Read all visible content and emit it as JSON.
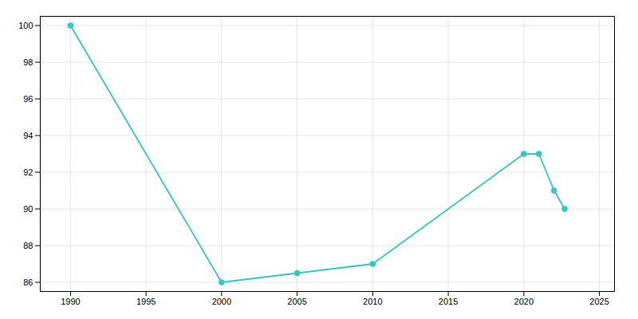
{
  "chart_data": {
    "type": "line",
    "x": [
      1990,
      2000,
      2005,
      2010,
      2020,
      2021,
      2022,
      2022.7
    ],
    "values": [
      100,
      86,
      86.5,
      87,
      93,
      93,
      91,
      90
    ],
    "color": "#2EC8C8",
    "marker": "circle",
    "xlim": [
      1988,
      2026
    ],
    "ylim": [
      85.5,
      100.5
    ],
    "xticks": [
      1990,
      1995,
      2000,
      2005,
      2010,
      2015,
      2020,
      2025
    ],
    "yticks": [
      86,
      88,
      90,
      92,
      94,
      96,
      98,
      100
    ],
    "grid": true
  }
}
